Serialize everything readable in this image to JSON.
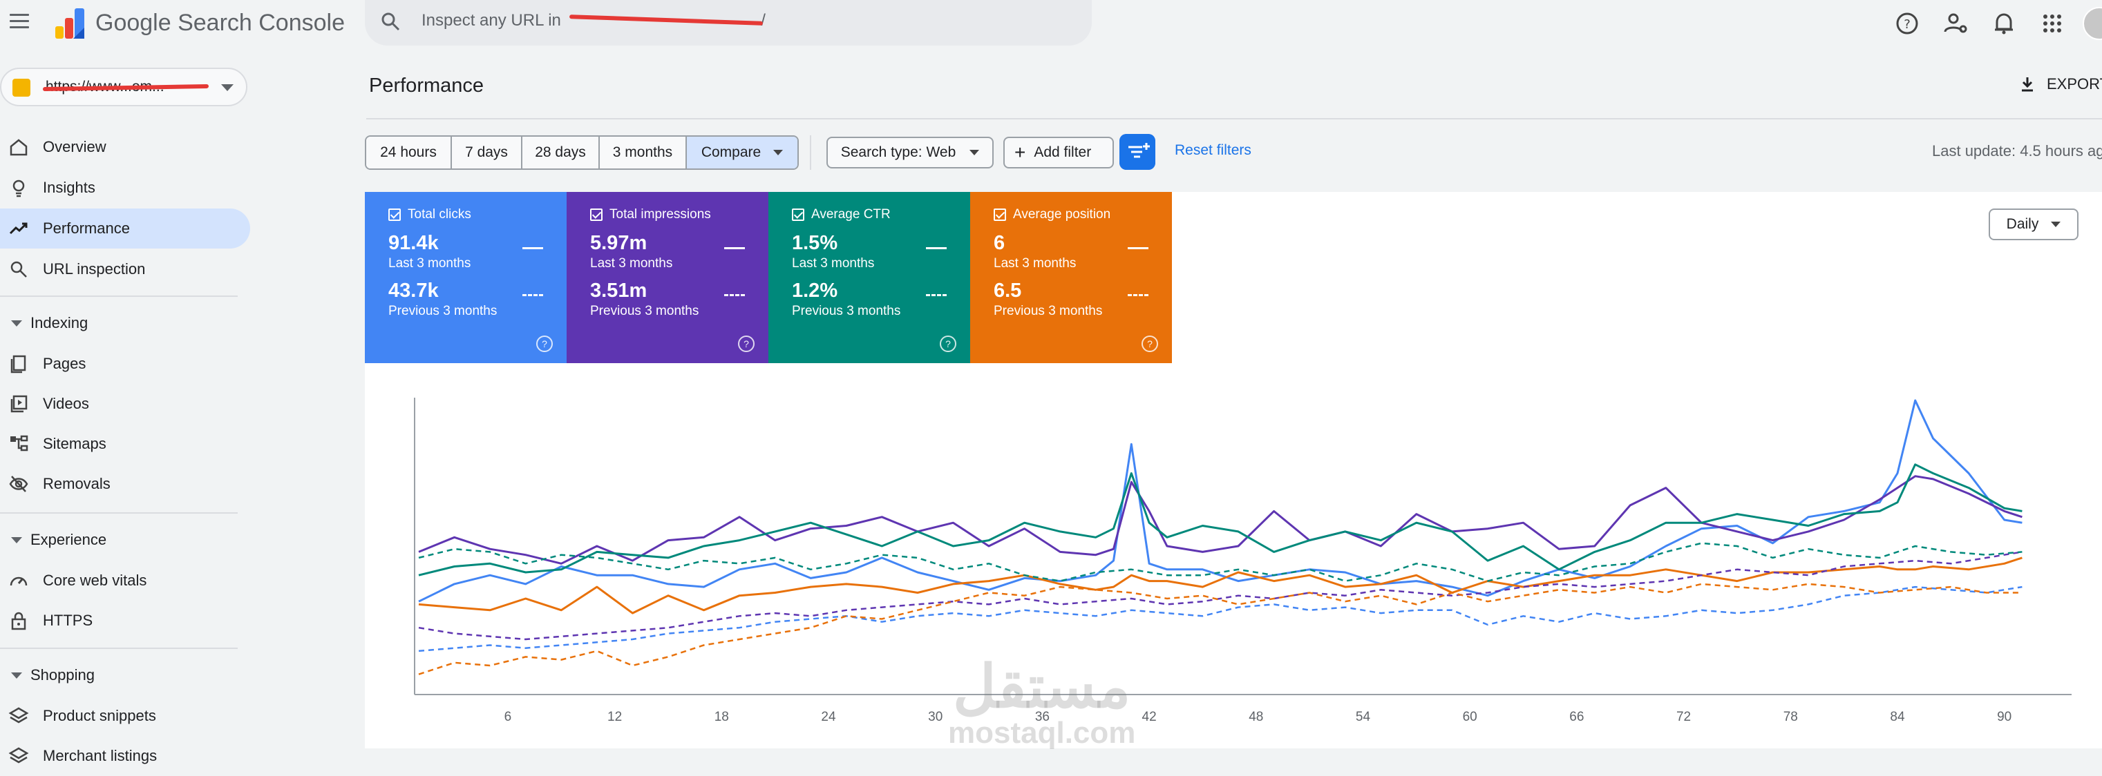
{
  "app": {
    "name": "Google Search Console"
  },
  "search": {
    "placeholder": "Inspect any URL in",
    "url_suffix": "/"
  },
  "topbar_icons": [
    "help-icon",
    "manage-users-icon",
    "notifications-icon",
    "apps-icon"
  ],
  "property": {
    "label": "https://www...om..."
  },
  "sidebar": {
    "top_items": [
      {
        "label": "Overview",
        "icon": "home-icon"
      },
      {
        "label": "Insights",
        "icon": "lightbulb-icon"
      },
      {
        "label": "Performance",
        "icon": "trending-up-icon",
        "active": true
      },
      {
        "label": "URL inspection",
        "icon": "search-icon"
      }
    ],
    "sections": [
      {
        "title": "Indexing",
        "items": [
          {
            "label": "Pages",
            "icon": "pages-icon"
          },
          {
            "label": "Videos",
            "icon": "video-icon"
          },
          {
            "label": "Sitemaps",
            "icon": "sitemap-icon"
          },
          {
            "label": "Removals",
            "icon": "eye-off-icon"
          }
        ]
      },
      {
        "title": "Experience",
        "items": [
          {
            "label": "Core web vitals",
            "icon": "speed-icon"
          },
          {
            "label": "HTTPS",
            "icon": "lock-icon"
          }
        ]
      },
      {
        "title": "Shopping",
        "items": [
          {
            "label": "Product snippets",
            "icon": "layers-icon"
          },
          {
            "label": "Merchant listings",
            "icon": "layers-icon"
          }
        ]
      }
    ]
  },
  "page": {
    "title": "Performance",
    "export_label": "EXPORT"
  },
  "filters": {
    "ranges": [
      "24 hours",
      "7 days",
      "28 days",
      "3 months"
    ],
    "compare_label": "Compare",
    "search_type_label": "Search type: Web",
    "add_filter_label": "Add filter",
    "reset_label": "Reset filters",
    "last_update": "Last update: 4.5 hours ag"
  },
  "metrics": [
    {
      "title": "Total clicks",
      "value": "91.4k",
      "period": "Last 3 months",
      "prev_value": "43.7k",
      "prev_period": "Previous 3 months",
      "color": "#4285f4"
    },
    {
      "title": "Total impressions",
      "value": "5.97m",
      "period": "Last 3 months",
      "prev_value": "3.51m",
      "prev_period": "Previous 3 months",
      "color": "#5e35b1"
    },
    {
      "title": "Average CTR",
      "value": "1.5%",
      "period": "Last 3 months",
      "prev_value": "1.2%",
      "prev_period": "Previous 3 months",
      "color": "#00897b"
    },
    {
      "title": "Average position",
      "value": "6",
      "period": "Last 3 months",
      "prev_value": "6.5",
      "prev_period": "Previous 3 months",
      "color": "#e8710a"
    }
  ],
  "granularity": {
    "label": "Daily"
  },
  "watermark": {
    "arabic": "مستقل",
    "latin": "mostaql.com"
  },
  "chart_data": {
    "type": "line",
    "x_ticks": [
      6,
      12,
      18,
      24,
      30,
      36,
      42,
      48,
      54,
      60,
      66,
      72,
      78,
      84,
      90
    ],
    "xlim": [
      1,
      93
    ],
    "ylim": [
      0,
      100
    ],
    "grid": false,
    "series": [
      {
        "color": "#4285f4",
        "style": "solid",
        "x": [
          1,
          3,
          5,
          7,
          9,
          11,
          13,
          15,
          17,
          19,
          21,
          23,
          25,
          27,
          29,
          31,
          33,
          35,
          37,
          39,
          40,
          41,
          42,
          43,
          45,
          47,
          49,
          51,
          53,
          55,
          57,
          59,
          61,
          63,
          65,
          67,
          69,
          71,
          73,
          75,
          77,
          79,
          81,
          83,
          84,
          85,
          86,
          88,
          90,
          91
        ],
        "values": [
          31,
          37,
          40,
          37,
          43,
          40,
          40,
          37,
          36,
          42,
          44,
          39,
          41,
          46,
          41,
          38,
          35,
          39,
          38,
          40,
          45,
          85,
          44,
          42,
          42,
          38,
          40,
          42,
          41,
          37,
          38,
          36,
          33,
          38,
          42,
          39,
          43,
          50,
          56,
          57,
          51,
          60,
          62,
          65,
          75,
          100,
          87,
          75,
          59,
          58
        ]
      },
      {
        "color": "#5e35b1",
        "style": "solid",
        "x": [
          1,
          3,
          5,
          7,
          9,
          11,
          13,
          15,
          17,
          19,
          21,
          23,
          25,
          27,
          29,
          31,
          33,
          35,
          37,
          39,
          40,
          41,
          42,
          43,
          45,
          47,
          49,
          51,
          53,
          55,
          57,
          59,
          61,
          63,
          65,
          67,
          69,
          71,
          73,
          75,
          77,
          79,
          81,
          83,
          84,
          85,
          86,
          88,
          90,
          91
        ],
        "values": [
          48,
          53,
          49,
          47,
          44,
          50,
          45,
          52,
          53,
          60,
          52,
          56,
          57,
          60,
          55,
          58,
          50,
          56,
          48,
          47,
          49,
          72,
          62,
          50,
          48,
          50,
          62,
          52,
          55,
          50,
          61,
          55,
          56,
          58,
          49,
          50,
          64,
          70,
          58,
          55,
          52,
          55,
          59,
          66,
          70,
          74,
          73,
          68,
          62,
          60
        ]
      },
      {
        "color": "#00897b",
        "style": "solid",
        "x": [
          1,
          3,
          5,
          7,
          9,
          11,
          13,
          15,
          17,
          19,
          21,
          23,
          25,
          27,
          29,
          31,
          33,
          35,
          37,
          39,
          40,
          41,
          42,
          43,
          45,
          47,
          49,
          51,
          53,
          55,
          57,
          59,
          61,
          63,
          65,
          67,
          69,
          71,
          73,
          75,
          77,
          79,
          81,
          83,
          84,
          85,
          86,
          88,
          90,
          91
        ],
        "values": [
          40,
          43,
          44,
          41,
          42,
          48,
          47,
          46,
          50,
          52,
          55,
          58,
          54,
          50,
          55,
          50,
          52,
          58,
          55,
          53,
          56,
          75,
          58,
          53,
          57,
          55,
          48,
          52,
          55,
          52,
          58,
          55,
          45,
          50,
          42,
          48,
          52,
          58,
          58,
          61,
          59,
          57,
          61,
          62,
          65,
          78,
          75,
          70,
          63,
          62
        ]
      },
      {
        "color": "#e8710a",
        "style": "solid",
        "x": [
          1,
          3,
          5,
          7,
          9,
          11,
          13,
          15,
          17,
          19,
          21,
          23,
          25,
          27,
          29,
          31,
          33,
          35,
          37,
          39,
          40,
          41,
          42,
          43,
          45,
          47,
          49,
          51,
          53,
          55,
          57,
          59,
          61,
          63,
          65,
          67,
          69,
          71,
          73,
          75,
          77,
          79,
          81,
          83,
          84,
          85,
          86,
          88,
          90,
          91
        ],
        "values": [
          30,
          29,
          28,
          32,
          28,
          36,
          27,
          33,
          28,
          33,
          34,
          36,
          37,
          36,
          34,
          37,
          38,
          40,
          37,
          35,
          36,
          40,
          38,
          38,
          36,
          41,
          38,
          40,
          36,
          37,
          40,
          34,
          38,
          36,
          38,
          40,
          40,
          42,
          40,
          38,
          41,
          41,
          42,
          43,
          42,
          42,
          43,
          42,
          44,
          46
        ]
      },
      {
        "color": "#4285f4",
        "style": "dashed",
        "x": [
          1,
          3,
          5,
          7,
          9,
          11,
          13,
          15,
          17,
          19,
          21,
          23,
          25,
          27,
          29,
          31,
          33,
          35,
          37,
          39,
          41,
          43,
          45,
          47,
          49,
          51,
          53,
          55,
          57,
          59,
          61,
          63,
          65,
          67,
          69,
          71,
          73,
          75,
          77,
          79,
          81,
          83,
          85,
          87,
          89,
          91
        ],
        "values": [
          14,
          15,
          16,
          15,
          16,
          17,
          18,
          20,
          21,
          22,
          24,
          25,
          26,
          24,
          26,
          27,
          26,
          28,
          27,
          26,
          28,
          27,
          26,
          29,
          30,
          28,
          29,
          27,
          28,
          28,
          23,
          26,
          24,
          27,
          25,
          26,
          28,
          27,
          28,
          30,
          33,
          34,
          36,
          35,
          34,
          36
        ]
      },
      {
        "color": "#5e35b1",
        "style": "dashed",
        "x": [
          1,
          3,
          5,
          7,
          9,
          11,
          13,
          15,
          17,
          19,
          21,
          23,
          25,
          27,
          29,
          31,
          33,
          35,
          37,
          39,
          41,
          43,
          45,
          47,
          49,
          51,
          53,
          55,
          57,
          59,
          61,
          63,
          65,
          67,
          69,
          71,
          73,
          75,
          77,
          79,
          81,
          83,
          85,
          87,
          89,
          91
        ],
        "values": [
          22,
          20,
          19,
          18,
          19,
          20,
          21,
          22,
          24,
          26,
          27,
          26,
          28,
          29,
          30,
          31,
          30,
          32,
          30,
          31,
          32,
          30,
          31,
          33,
          32,
          34,
          33,
          35,
          34,
          33,
          34,
          36,
          37,
          36,
          37,
          38,
          40,
          42,
          41,
          40,
          43,
          44,
          45,
          44,
          46,
          48
        ]
      },
      {
        "color": "#00897b",
        "style": "dashed",
        "x": [
          1,
          3,
          5,
          7,
          9,
          11,
          13,
          15,
          17,
          19,
          21,
          23,
          25,
          27,
          29,
          31,
          33,
          35,
          37,
          39,
          41,
          43,
          45,
          47,
          49,
          51,
          53,
          55,
          57,
          59,
          61,
          63,
          65,
          67,
          69,
          71,
          73,
          75,
          77,
          79,
          81,
          83,
          85,
          87,
          89,
          91
        ],
        "values": [
          46,
          49,
          48,
          44,
          47,
          46,
          44,
          42,
          45,
          44,
          46,
          42,
          44,
          47,
          46,
          42,
          44,
          40,
          38,
          41,
          42,
          40,
          40,
          42,
          40,
          42,
          38,
          40,
          44,
          42,
          38,
          41,
          40,
          43,
          44,
          48,
          51,
          50,
          46,
          49,
          47,
          46,
          50,
          48,
          47,
          48
        ]
      },
      {
        "color": "#e8710a",
        "style": "dashed",
        "x": [
          1,
          3,
          5,
          7,
          9,
          11,
          13,
          15,
          17,
          19,
          21,
          23,
          25,
          27,
          29,
          31,
          33,
          35,
          37,
          39,
          41,
          43,
          45,
          47,
          49,
          51,
          53,
          55,
          57,
          59,
          61,
          63,
          65,
          67,
          69,
          71,
          73,
          75,
          77,
          79,
          81,
          83,
          85,
          87,
          89,
          91
        ],
        "values": [
          6,
          10,
          9,
          12,
          11,
          14,
          9,
          12,
          16,
          18,
          20,
          22,
          26,
          25,
          28,
          31,
          34,
          33,
          36,
          35,
          34,
          32,
          33,
          30,
          32,
          34,
          31,
          33,
          30,
          34,
          31,
          33,
          35,
          34,
          36,
          34,
          37,
          36,
          35,
          37,
          36,
          34,
          35,
          36,
          34,
          34
        ]
      }
    ]
  }
}
